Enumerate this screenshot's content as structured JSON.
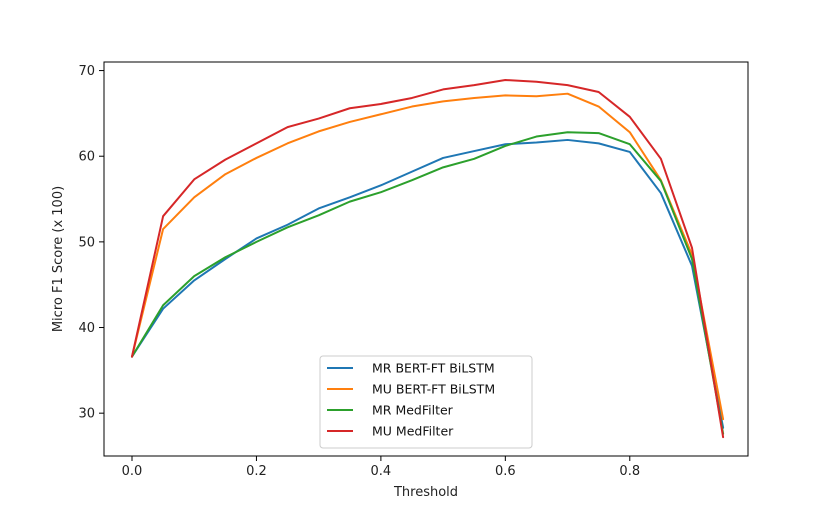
{
  "chart_data": {
    "type": "line",
    "title": "",
    "xlabel": "Threshold",
    "ylabel": "Micro F1 Score (x 100)",
    "xlim": [
      -0.045,
      0.99
    ],
    "ylim": [
      25,
      71
    ],
    "xticks": [
      0.0,
      0.2,
      0.4,
      0.6,
      0.8
    ],
    "xtick_labels": [
      "0.0",
      "0.2",
      "0.4",
      "0.6",
      "0.8"
    ],
    "yticks": [
      30,
      40,
      50,
      60,
      70
    ],
    "ytick_labels": [
      "30",
      "40",
      "50",
      "60",
      "70"
    ],
    "grid": false,
    "legend_position": "bottom-center",
    "x": [
      0.0,
      0.05,
      0.1,
      0.15,
      0.2,
      0.25,
      0.3,
      0.35,
      0.4,
      0.45,
      0.5,
      0.55,
      0.6,
      0.65,
      0.7,
      0.75,
      0.8,
      0.85,
      0.9,
      0.95
    ],
    "series": [
      {
        "name": "MR BERT-FT BiLSTM",
        "color": "#1f77b4",
        "values": [
          36.6,
          42.2,
          45.5,
          48.0,
          50.4,
          52.0,
          53.9,
          55.2,
          56.6,
          58.2,
          59.8,
          60.6,
          61.4,
          61.6,
          61.9,
          61.5,
          60.5,
          55.7,
          47.2,
          28.3
        ]
      },
      {
        "name": "MU BERT-FT BiLSTM",
        "color": "#ff7f0e",
        "values": [
          36.6,
          51.5,
          55.2,
          57.9,
          59.8,
          61.5,
          62.9,
          64.0,
          64.9,
          65.8,
          66.4,
          66.8,
          67.1,
          67.0,
          67.3,
          65.8,
          62.8,
          57.2,
          48.5,
          29.3
        ]
      },
      {
        "name": "MR MedFilter",
        "color": "#2ca02c",
        "values": [
          36.6,
          42.6,
          46.0,
          48.2,
          50.0,
          51.7,
          53.1,
          54.7,
          55.8,
          57.2,
          58.7,
          59.7,
          61.2,
          62.3,
          62.8,
          62.7,
          61.4,
          57.1,
          48.0,
          27.6
        ]
      },
      {
        "name": "MU MedFilter",
        "color": "#d62728",
        "values": [
          36.6,
          53.0,
          57.3,
          59.6,
          61.5,
          63.4,
          64.4,
          65.6,
          66.1,
          66.8,
          67.8,
          68.3,
          68.9,
          68.7,
          68.3,
          67.5,
          64.6,
          59.7,
          49.3,
          27.2
        ]
      }
    ]
  }
}
